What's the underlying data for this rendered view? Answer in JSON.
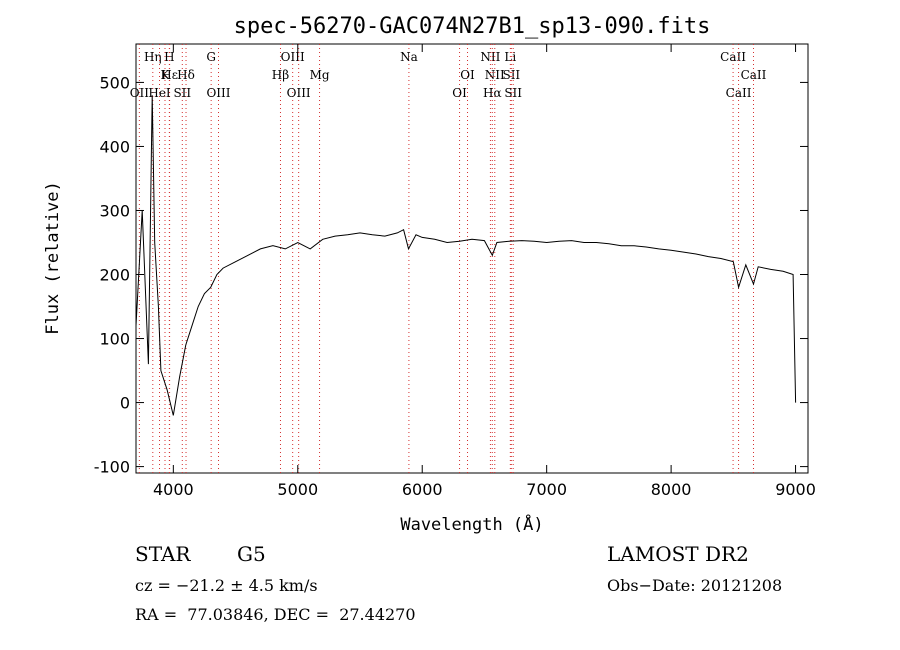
{
  "chart_data": {
    "type": "line",
    "title": "spec-56270-GAC074N27B1_sp13-090.fits",
    "xlabel": "Wavelength (Å)",
    "ylabel": "Flux (relative)",
    "xlim": [
      3700,
      9100
    ],
    "ylim": [
      -110,
      560
    ],
    "x_ticks": [
      4000,
      5000,
      6000,
      7000,
      8000,
      9000
    ],
    "y_ticks": [
      -100,
      0,
      100,
      200,
      300,
      400,
      500
    ],
    "grid": false,
    "series": [
      {
        "color": "#000000",
        "x": [
          3700,
          3750,
          3800,
          3830,
          3850,
          3880,
          3900,
          3950,
          4000,
          4050,
          4100,
          4150,
          4200,
          4250,
          4300,
          4350,
          4400,
          4500,
          4600,
          4700,
          4800,
          4900,
          5000,
          5100,
          5200,
          5300,
          5400,
          5500,
          5600,
          5700,
          5800,
          5850,
          5890,
          5950,
          6000,
          6100,
          6200,
          6300,
          6400,
          6500,
          6563,
          6600,
          6700,
          6800,
          6900,
          7000,
          7100,
          7200,
          7300,
          7400,
          7500,
          7600,
          7700,
          7800,
          7900,
          8000,
          8100,
          8200,
          8300,
          8400,
          8500,
          8542,
          8600,
          8662,
          8700,
          8800,
          8900,
          8980,
          9000
        ],
        "y": [
          120,
          300,
          60,
          480,
          250,
          150,
          50,
          20,
          -20,
          40,
          90,
          120,
          150,
          170,
          180,
          200,
          210,
          220,
          230,
          240,
          245,
          240,
          250,
          240,
          255,
          260,
          262,
          265,
          262,
          260,
          265,
          270,
          240,
          262,
          258,
          255,
          250,
          252,
          255,
          253,
          230,
          250,
          252,
          253,
          252,
          250,
          252,
          253,
          250,
          250,
          248,
          245,
          245,
          243,
          240,
          238,
          235,
          232,
          228,
          225,
          220,
          180,
          215,
          185,
          212,
          208,
          205,
          200,
          0
        ]
      }
    ]
  },
  "line_markers": {
    "top": [
      {
        "label": "Hη",
        "x": 3835
      },
      {
        "label": "H",
        "x": 3968
      },
      {
        "label": "G",
        "x": 4304
      },
      {
        "label": "OIII",
        "x": 4959
      },
      {
        "label": "Na",
        "x": 5893
      },
      {
        "label": "NII",
        "x": 6548
      },
      {
        "label": "Li",
        "x": 6708
      },
      {
        "label": "CaII",
        "x": 8498
      }
    ],
    "middle": [
      {
        "label": "Hε",
        "x": 3970
      },
      {
        "label": "K",
        "x": 3933
      },
      {
        "label": "Hδ",
        "x": 4102
      },
      {
        "label": "Hβ",
        "x": 4861
      },
      {
        "label": "Mg",
        "x": 5175
      },
      {
        "label": "OI",
        "x": 6364
      },
      {
        "label": "NII",
        "x": 6583
      },
      {
        "label": "SII",
        "x": 6716
      },
      {
        "label": "CaII",
        "x": 8662
      }
    ],
    "bottom": [
      {
        "label": "OII",
        "x": 3727
      },
      {
        "label": "HeI",
        "x": 3889
      },
      {
        "label": "SII",
        "x": 4072
      },
      {
        "label": "OIII",
        "x": 4363
      },
      {
        "label": "OIII",
        "x": 5007
      },
      {
        "label": "OI",
        "x": 6300
      },
      {
        "label": "Hα",
        "x": 6563
      },
      {
        "label": "SII",
        "x": 6731
      },
      {
        "label": "CaII",
        "x": 8542
      }
    ]
  },
  "info": {
    "class_label": "STAR",
    "subclass": "G5",
    "survey": "LAMOST DR2",
    "cz": "cz = −21.2 ± 4.5 km/s",
    "obs_date": "Obs−Date: 20121208",
    "coords": "RA =  77.03846, DEC =  27.44270"
  }
}
